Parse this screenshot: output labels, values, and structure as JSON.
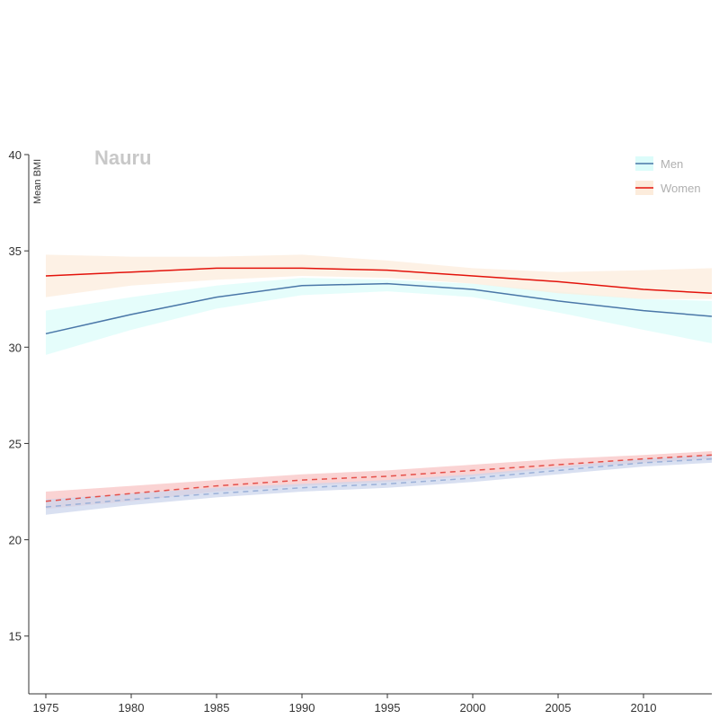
{
  "chart_data": {
    "type": "line",
    "title": "Nauru",
    "ylabel": "Mean BMI",
    "xlabel": "",
    "xlim": [
      1974,
      2014
    ],
    "ylim": [
      12,
      40
    ],
    "xticks": [
      1975,
      1980,
      1985,
      1990,
      1995,
      2000,
      2005,
      2010
    ],
    "yticks": [
      15,
      20,
      25,
      30,
      35,
      40
    ],
    "grid": false,
    "legend_position": "top-right",
    "legend": [
      {
        "name": "Men",
        "color": "#4a77a8"
      },
      {
        "name": "Women",
        "color": "#e3120b"
      }
    ],
    "series": [
      {
        "name": "Men",
        "style": "solid",
        "color": "#4a77a8",
        "band_color": "#dcfcfa",
        "x": [
          1975,
          1980,
          1985,
          1990,
          1995,
          2000,
          2005,
          2010,
          2014
        ],
        "values": [
          30.7,
          31.7,
          32.6,
          33.2,
          33.3,
          33.0,
          32.4,
          31.9,
          31.6
        ],
        "lower": [
          29.6,
          30.9,
          32.0,
          32.7,
          32.9,
          32.6,
          31.8,
          30.9,
          30.2
        ],
        "upper": [
          31.9,
          32.6,
          33.2,
          33.6,
          33.5,
          33.3,
          32.9,
          32.5,
          32.4
        ]
      },
      {
        "name": "Women",
        "style": "solid",
        "color": "#e3120b",
        "band_color": "#fcecdc",
        "x": [
          1975,
          1980,
          1985,
          1990,
          1995,
          2000,
          2005,
          2010,
          2014
        ],
        "values": [
          33.7,
          33.9,
          34.1,
          34.1,
          34.0,
          33.7,
          33.4,
          33.0,
          32.8
        ],
        "lower": [
          32.6,
          33.2,
          33.5,
          33.7,
          33.6,
          33.3,
          32.8,
          32.5,
          32.5
        ],
        "upper": [
          34.8,
          34.7,
          34.7,
          34.8,
          34.5,
          34.1,
          33.9,
          34.0,
          34.1
        ]
      },
      {
        "style": "dashed",
        "color": "#e5504a",
        "band_color": "#f8c4c4",
        "x": [
          1975,
          1980,
          1985,
          1990,
          1995,
          2000,
          2005,
          2010,
          2014
        ],
        "values": [
          22.0,
          22.4,
          22.8,
          23.1,
          23.3,
          23.6,
          23.9,
          24.2,
          24.4
        ],
        "lower": [
          21.6,
          22.0,
          22.5,
          22.8,
          23.0,
          23.3,
          23.7,
          24.0,
          24.2
        ],
        "upper": [
          22.5,
          22.8,
          23.1,
          23.4,
          23.6,
          23.9,
          24.2,
          24.4,
          24.6
        ]
      },
      {
        "style": "dashed",
        "color": "#9ab0d8",
        "band_color": "#ccd6ec",
        "x": [
          1975,
          1980,
          1985,
          1990,
          1995,
          2000,
          2005,
          2010,
          2014
        ],
        "values": [
          21.7,
          22.1,
          22.4,
          22.7,
          22.9,
          23.2,
          23.6,
          24.0,
          24.2
        ],
        "lower": [
          21.3,
          21.8,
          22.2,
          22.5,
          22.7,
          23.0,
          23.4,
          23.8,
          24.0
        ],
        "upper": [
          22.1,
          22.4,
          22.7,
          22.9,
          23.1,
          23.4,
          23.8,
          24.2,
          24.4
        ]
      }
    ]
  }
}
